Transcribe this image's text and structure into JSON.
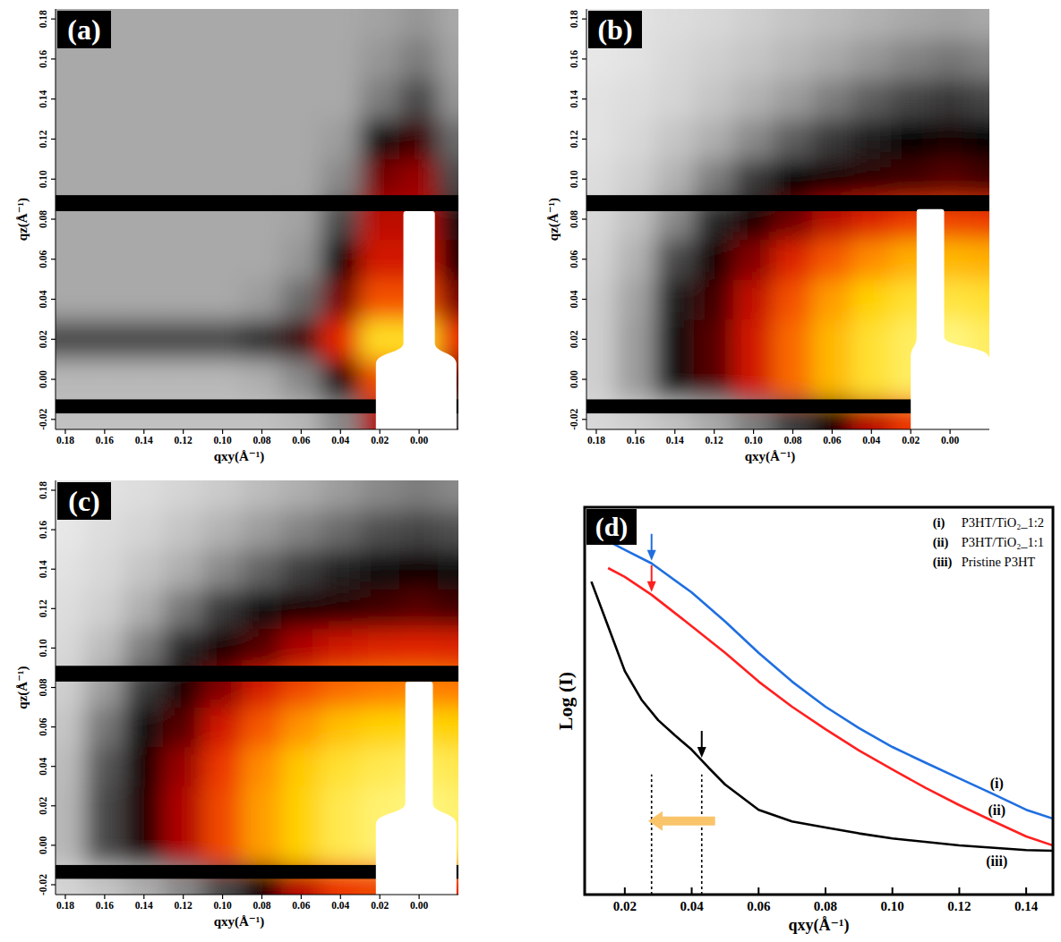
{
  "chart_data": [
    {
      "type": "heatmap",
      "panel_label": "(a)",
      "x_label": "qxy(Å⁻¹)",
      "y_label": "qz(Å⁻¹)",
      "xlim": [
        0.185,
        -0.02
      ],
      "ylim": [
        -0.025,
        0.185
      ],
      "xticks": [
        0.18,
        0.16,
        0.14,
        0.12,
        {
          "value": 0.1,
          "label": "0.10"
        },
        0.08,
        0.06,
        0.04,
        0.02,
        {
          "value": 0,
          "label": "0.00"
        }
      ],
      "yticks": [
        -0.02,
        {
          "value": 0,
          "label": "0.00"
        },
        0.02,
        0.04,
        0.06,
        0.08,
        {
          "value": 0.1,
          "label": "0.10"
        },
        0.12,
        0.14,
        0.16,
        0.18
      ],
      "zlim": [
        0,
        1
      ],
      "x": [
        0.18,
        0.16,
        0.14,
        0.12,
        0.1,
        0.08,
        0.06,
        0.04,
        0.02,
        0,
        -0.02
      ],
      "y": [
        -0.02,
        0,
        0.02,
        0.04,
        0.06,
        0.08,
        0.1,
        0.12,
        0.14,
        0.16,
        0.18
      ],
      "z": [
        [
          0.1,
          0.1,
          0.1,
          0.1,
          0.1,
          0.1,
          0.12,
          0.2,
          0.6,
          0.6,
          0.3
        ],
        [
          0.12,
          0.12,
          0.12,
          0.12,
          0.12,
          0.14,
          0.2,
          0.45,
          0.75,
          0.8,
          0.5
        ],
        [
          0.3,
          0.3,
          0.3,
          0.3,
          0.3,
          0.35,
          0.5,
          0.7,
          0.92,
          0.92,
          0.7
        ],
        [
          0.15,
          0.15,
          0.15,
          0.15,
          0.15,
          0.17,
          0.25,
          0.55,
          0.75,
          0.75,
          0.55
        ],
        [
          0.15,
          0.15,
          0.15,
          0.15,
          0.15,
          0.15,
          0.18,
          0.42,
          0.66,
          0.66,
          0.45
        ],
        [
          0.15,
          0.15,
          0.15,
          0.15,
          0.15,
          0.15,
          0.16,
          0.3,
          0.62,
          0.62,
          0.4
        ],
        [
          0.15,
          0.15,
          0.15,
          0.15,
          0.15,
          0.15,
          0.15,
          0.2,
          0.55,
          0.58,
          0.3
        ],
        [
          0.15,
          0.15,
          0.15,
          0.15,
          0.15,
          0.15,
          0.15,
          0.17,
          0.4,
          0.5,
          0.25
        ],
        [
          0.15,
          0.15,
          0.15,
          0.15,
          0.15,
          0.15,
          0.15,
          0.15,
          0.22,
          0.3,
          0.18
        ],
        [
          0.15,
          0.15,
          0.15,
          0.15,
          0.15,
          0.15,
          0.15,
          0.15,
          0.18,
          0.22,
          0.16
        ],
        [
          0.15,
          0.15,
          0.15,
          0.15,
          0.15,
          0.15,
          0.15,
          0.15,
          0.16,
          0.18,
          0.15
        ]
      ],
      "detector_gaps": [
        [
          0.084,
          0.092
        ],
        [
          -0.017,
          -0.01
        ]
      ],
      "beamstop": {
        "x": [
          0.008,
          -0.008
        ],
        "z": [
          -0.03,
          0.084
        ],
        "base_x": [
          0.022,
          -0.019
        ],
        "base_z": 0.012
      }
    },
    {
      "type": "heatmap",
      "panel_label": "(b)",
      "x_label": "qxy(Å⁻¹)",
      "y_label": "qz(Å⁻¹)",
      "xlim": [
        0.185,
        -0.02
      ],
      "ylim": [
        -0.025,
        0.185
      ],
      "xticks": [
        0.18,
        0.16,
        0.14,
        0.12,
        {
          "value": 0.1,
          "label": "0.10"
        },
        0.08,
        0.06,
        0.04,
        0.02,
        {
          "value": 0,
          "label": "0.00"
        }
      ],
      "yticks": [
        -0.02,
        {
          "value": 0,
          "label": "0.00"
        },
        0.02,
        0.04,
        0.06,
        0.08,
        {
          "value": 0.1,
          "label": "0.10"
        },
        0.12,
        0.14,
        0.16,
        0.18
      ],
      "zlim": [
        0,
        1
      ],
      "x": [
        0.18,
        0.16,
        0.14,
        0.12,
        0.1,
        0.08,
        0.06,
        0.04,
        0.02,
        0,
        -0.02
      ],
      "y": [
        -0.02,
        0,
        0.02,
        0.04,
        0.06,
        0.08,
        0.1,
        0.12,
        0.14,
        0.16,
        0.18
      ],
      "z": [
        [
          0.05,
          0.07,
          0.1,
          0.15,
          0.22,
          0.32,
          0.45,
          0.62,
          0.72,
          0.74,
          0.7
        ],
        [
          0.07,
          0.17,
          0.4,
          0.52,
          0.66,
          0.78,
          0.87,
          0.93,
          0.96,
          0.98,
          0.96
        ],
        [
          0.07,
          0.17,
          0.4,
          0.52,
          0.66,
          0.78,
          0.87,
          0.93,
          0.96,
          0.98,
          0.96
        ],
        [
          0.07,
          0.16,
          0.38,
          0.5,
          0.63,
          0.75,
          0.84,
          0.9,
          0.93,
          0.94,
          0.93
        ],
        [
          0.06,
          0.13,
          0.3,
          0.44,
          0.56,
          0.68,
          0.76,
          0.82,
          0.86,
          0.87,
          0.86
        ],
        [
          0.05,
          0.1,
          0.2,
          0.36,
          0.45,
          0.54,
          0.62,
          0.68,
          0.72,
          0.73,
          0.72
        ],
        [
          0.04,
          0.07,
          0.13,
          0.22,
          0.33,
          0.42,
          0.45,
          0.48,
          0.5,
          0.52,
          0.5
        ],
        [
          0.03,
          0.05,
          0.09,
          0.14,
          0.2,
          0.27,
          0.33,
          0.38,
          0.42,
          0.44,
          0.42
        ],
        [
          0.03,
          0.04,
          0.06,
          0.09,
          0.13,
          0.17,
          0.22,
          0.27,
          0.31,
          0.33,
          0.31
        ],
        [
          0.02,
          0.03,
          0.05,
          0.07,
          0.09,
          0.12,
          0.15,
          0.18,
          0.21,
          0.23,
          0.21
        ],
        [
          0.02,
          0.03,
          0.04,
          0.05,
          0.07,
          0.09,
          0.11,
          0.13,
          0.15,
          0.16,
          0.15
        ]
      ],
      "detector_gaps": [
        [
          0.084,
          0.092
        ],
        [
          -0.017,
          -0.01
        ]
      ],
      "beamstop": {
        "x": [
          0.017,
          0.003
        ],
        "z": [
          -0.03,
          0.085
        ],
        "base_x": [
          0.02,
          -0.02
        ],
        "base_z": 0.015
      }
    },
    {
      "type": "heatmap",
      "panel_label": "(c)",
      "x_label": "qxy(Å⁻¹)",
      "y_label": "qz(Å⁻¹)",
      "xlim": [
        0.185,
        -0.02
      ],
      "ylim": [
        -0.025,
        0.185
      ],
      "xticks": [
        0.18,
        0.16,
        0.14,
        0.12,
        {
          "value": 0.1,
          "label": "0.10"
        },
        0.08,
        0.06,
        0.04,
        0.02,
        {
          "value": 0,
          "label": "0.00"
        }
      ],
      "yticks": [
        -0.02,
        {
          "value": 0,
          "label": "0.00"
        },
        0.02,
        0.04,
        0.06,
        0.08,
        {
          "value": 0.1,
          "label": "0.10"
        },
        0.12,
        0.14,
        0.16,
        0.18
      ],
      "zlim": [
        0,
        1
      ],
      "x": [
        0.18,
        0.16,
        0.14,
        0.12,
        0.1,
        0.08,
        0.06,
        0.04,
        0.02,
        0,
        -0.02
      ],
      "y": [
        -0.02,
        0,
        0.02,
        0.04,
        0.06,
        0.08,
        0.1,
        0.12,
        0.14,
        0.16,
        0.18
      ],
      "z": [
        [
          0.06,
          0.09,
          0.14,
          0.2,
          0.3,
          0.45,
          0.62,
          0.72,
          0.74,
          0.74,
          0.7
        ],
        [
          0.12,
          0.3,
          0.46,
          0.6,
          0.74,
          0.84,
          0.9,
          0.95,
          0.97,
          0.98,
          0.97
        ],
        [
          0.12,
          0.3,
          0.46,
          0.6,
          0.74,
          0.84,
          0.9,
          0.95,
          0.97,
          0.98,
          0.97
        ],
        [
          0.11,
          0.28,
          0.44,
          0.58,
          0.72,
          0.82,
          0.89,
          0.93,
          0.95,
          0.96,
          0.95
        ],
        [
          0.09,
          0.23,
          0.4,
          0.52,
          0.66,
          0.76,
          0.83,
          0.88,
          0.9,
          0.91,
          0.9
        ],
        [
          0.07,
          0.17,
          0.33,
          0.45,
          0.56,
          0.67,
          0.74,
          0.78,
          0.8,
          0.81,
          0.8
        ],
        [
          0.05,
          0.11,
          0.22,
          0.36,
          0.45,
          0.52,
          0.6,
          0.66,
          0.68,
          0.69,
          0.68
        ],
        [
          0.04,
          0.07,
          0.14,
          0.23,
          0.33,
          0.41,
          0.45,
          0.47,
          0.5,
          0.52,
          0.5
        ],
        [
          0.03,
          0.05,
          0.09,
          0.14,
          0.2,
          0.26,
          0.32,
          0.37,
          0.41,
          0.43,
          0.41
        ],
        [
          0.02,
          0.04,
          0.06,
          0.09,
          0.13,
          0.17,
          0.21,
          0.25,
          0.29,
          0.31,
          0.29
        ],
        [
          0.02,
          0.03,
          0.04,
          0.06,
          0.08,
          0.11,
          0.14,
          0.17,
          0.2,
          0.22,
          0.2
        ]
      ],
      "detector_gaps": [
        [
          0.083,
          0.091
        ],
        [
          -0.017,
          -0.01
        ]
      ],
      "beamstop": {
        "x": [
          0.007,
          -0.007
        ],
        "z": [
          -0.03,
          0.083
        ],
        "base_x": [
          0.022,
          -0.019
        ],
        "base_z": 0.015
      }
    },
    {
      "type": "line",
      "panel_label": "(d)",
      "x_label": "qxy(Å⁻¹)",
      "y_label": "Log (I)",
      "xlim": [
        0.008,
        0.148
      ],
      "ylim": [
        0,
        10
      ],
      "xticks": [
        0.02,
        0.04,
        0.06,
        0.08,
        {
          "value": 0.1,
          "label": "0.10"
        },
        0.12,
        0.14
      ],
      "tick_labels": "x",
      "legend": "top-right",
      "series": [
        {
          "label": "(i)",
          "name": "P3HT/TiO₂_1:2",
          "color": "#1f6fe0",
          "x": [
            0.01,
            0.02,
            0.028,
            0.04,
            0.05,
            0.06,
            0.07,
            0.08,
            0.09,
            0.1,
            0.11,
            0.12,
            0.13,
            0.14,
            0.148
          ],
          "values": [
            9.35,
            8.9,
            8.55,
            7.8,
            7.05,
            6.24,
            5.5,
            4.85,
            4.3,
            3.81,
            3.4,
            3.0,
            2.6,
            2.19,
            1.96
          ]
        },
        {
          "label": "(ii)",
          "name": "P3HT/TiO₂_1:1",
          "color": "#ff2020",
          "x": [
            0.015,
            0.02,
            0.028,
            0.04,
            0.05,
            0.06,
            0.07,
            0.08,
            0.09,
            0.1,
            0.11,
            0.12,
            0.13,
            0.14,
            0.148
          ],
          "values": [
            8.43,
            8.2,
            7.74,
            6.93,
            6.24,
            5.5,
            4.85,
            4.27,
            3.72,
            3.23,
            2.75,
            2.31,
            1.9,
            1.5,
            1.27
          ]
        },
        {
          "label": "(iii)",
          "name": "Pristine P3HT",
          "color": "#000000",
          "x": [
            0.01,
            0.015,
            0.02,
            0.025,
            0.03,
            0.035,
            0.04,
            0.045,
            0.05,
            0.06,
            0.07,
            0.08,
            0.09,
            0.1,
            0.12,
            0.14,
            0.148
          ],
          "values": [
            8.08,
            6.93,
            5.77,
            5.03,
            4.5,
            4.11,
            3.74,
            3.28,
            2.84,
            2.19,
            1.89,
            1.73,
            1.58,
            1.45,
            1.27,
            1.15,
            1.13
          ]
        }
      ],
      "arrows": [
        {
          "x": 0.028,
          "series": 0
        },
        {
          "x": 0.028,
          "series": 1
        },
        {
          "x": 0.043,
          "series": 2
        }
      ],
      "dotted_lines": {
        "x": [
          0.028,
          0.043
        ],
        "top": 3.1
      },
      "shift_arrow": {
        "from": 0.047,
        "to": 0.027,
        "y": 1.9,
        "color": "#f9c46a"
      }
    }
  ]
}
